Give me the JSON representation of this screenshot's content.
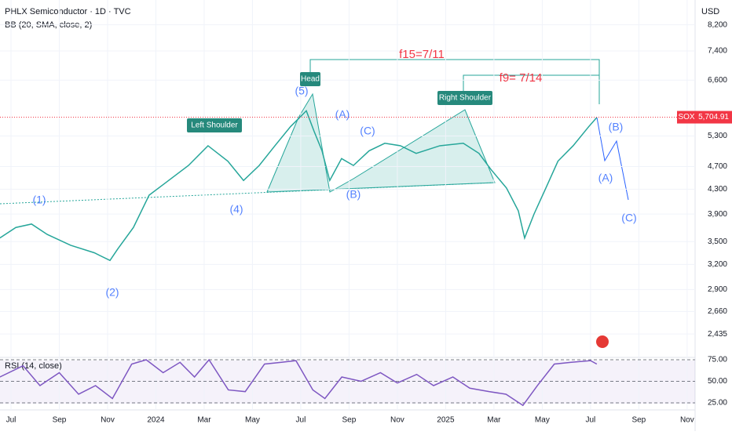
{
  "header": {
    "title": "PHLX Semiconductor · 1D · TVC",
    "indicator": "BB (20, SMA, close, 2)",
    "currency": "USD"
  },
  "chart_data": [
    {
      "type": "line",
      "log_scale": true,
      "x": [
        -0.46,
        0.2,
        0.85,
        1.5,
        2.47,
        3.45,
        4.1,
        4.42,
        5.07,
        5.72,
        6.37,
        7.35,
        8.16,
        8.98,
        9.63,
        10.28,
        10.93,
        11.58,
        12.23,
        12.55,
        12.88,
        13.2,
        13.69,
        14.18,
        14.83,
        15.48,
        16.13,
        16.78,
        17.76,
        18.73,
        19.38,
        19.87,
        20.52,
        21.01,
        21.27,
        21.66,
        22.15,
        22.65,
        23.28,
        23.93,
        24.26
      ],
      "series": [
        {
          "name": "SOX",
          "color": "#26a69a",
          "values": [
            3550,
            3700,
            3750,
            3600,
            3450,
            3350,
            3250,
            3400,
            3700,
            4200,
            4400,
            4720,
            5100,
            4800,
            4450,
            4720,
            5100,
            5500,
            5850,
            5400,
            5000,
            4450,
            4850,
            4720,
            5000,
            5150,
            5100,
            4950,
            5100,
            5150,
            4950,
            4650,
            4320,
            3950,
            3550,
            3900,
            4320,
            4800,
            5100,
            5500,
            5700
          ]
        }
      ],
      "last_price": 5704.91,
      "last_price_label": "5,704.91",
      "xlim": [
        -0.455,
        28.33
      ],
      "xticks": [
        {
          "value": 0,
          "label": "Jul"
        },
        {
          "value": 2,
          "label": "Sep"
        },
        {
          "value": 4,
          "label": "Nov"
        },
        {
          "value": 6,
          "label": "2024"
        },
        {
          "value": 8,
          "label": "Mar"
        },
        {
          "value": 10,
          "label": "May"
        },
        {
          "value": 12,
          "label": "Jul"
        },
        {
          "value": 14,
          "label": "Sep"
        },
        {
          "value": 16,
          "label": "Nov"
        },
        {
          "value": 18,
          "label": "2025"
        },
        {
          "value": 20,
          "label": "Mar"
        },
        {
          "value": 22,
          "label": "May"
        },
        {
          "value": 24,
          "label": "Jul"
        },
        {
          "value": 26,
          "label": "Sep"
        },
        {
          "value": 28,
          "label": "Nov"
        }
      ],
      "ylim": [
        2228,
        9040
      ],
      "yticks": [
        {
          "value": 8200,
          "label": "8,200"
        },
        {
          "value": 7400,
          "label": "7,400"
        },
        {
          "value": 6600,
          "label": "6,600"
        },
        {
          "value": 5300,
          "label": "5,300"
        },
        {
          "value": 4700,
          "label": "4,700"
        },
        {
          "value": 4300,
          "label": "4,300"
        },
        {
          "value": 3900,
          "label": "3,900"
        },
        {
          "value": 3500,
          "label": "3,500"
        },
        {
          "value": 3200,
          "label": "3,200"
        },
        {
          "value": 2900,
          "label": "2,900"
        },
        {
          "value": 2660,
          "label": "2,660"
        },
        {
          "value": 2435,
          "label": "2,435"
        }
      ],
      "annotations": [
        "(1)",
        "(2)",
        "(4)",
        "(5)",
        "(A)",
        "(C)",
        "(B)",
        "(B)",
        "(A)",
        "(C)",
        "Head",
        "Left Shoulder",
        "Right Shoulder",
        "f15=7/11",
        "f9= 7/14"
      ]
    },
    {
      "type": "line",
      "title": "RSI (14, close)",
      "color": "#7e57c2",
      "x": [
        -0.46,
        0.5,
        1.2,
        2,
        2.8,
        3.5,
        4.2,
        5,
        5.6,
        6.3,
        7,
        7.6,
        8.2,
        9,
        9.7,
        10.5,
        11.2,
        11.8,
        12.5,
        13,
        13.7,
        14.5,
        15.3,
        16,
        16.8,
        17.5,
        18.3,
        19,
        19.8,
        20.5,
        21.2,
        21.8,
        22.5,
        23.2,
        24,
        24.26
      ],
      "values": [
        55,
        68,
        45,
        60,
        35,
        45,
        30,
        70,
        75,
        60,
        72,
        55,
        75,
        40,
        38,
        70,
        72,
        74,
        40,
        30,
        55,
        50,
        60,
        48,
        58,
        45,
        55,
        42,
        38,
        35,
        22,
        45,
        70,
        72,
        74,
        70
      ],
      "ylim": [
        19.5,
        75.9
      ],
      "yticks": [
        {
          "value": 75,
          "label": "75.00"
        },
        {
          "value": 50,
          "label": "50.00"
        },
        {
          "value": 25,
          "label": "25.00"
        }
      ]
    }
  ]
}
